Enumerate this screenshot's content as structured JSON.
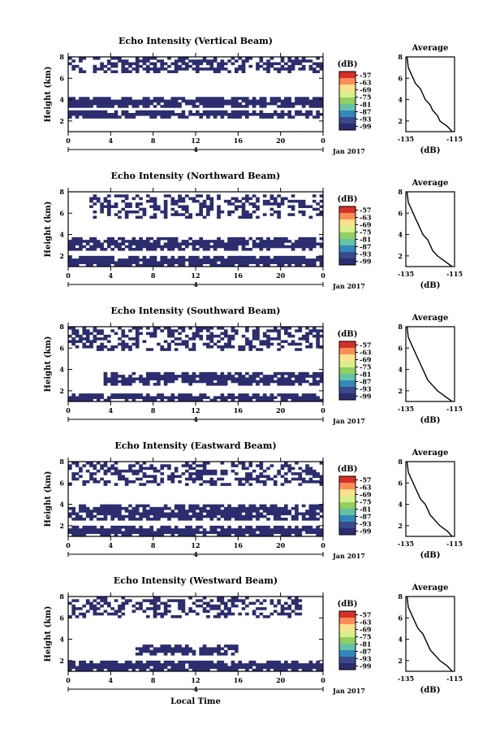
{
  "chart_data": {
    "type": "heatmap",
    "x_axis": {
      "label": "Local Time",
      "ticks": [
        "0",
        "4",
        "8",
        "12",
        "16",
        "20",
        "0"
      ],
      "range": [
        0,
        24
      ],
      "date_tick": "4",
      "date_label": "Jan 2017"
    },
    "y_axis": {
      "label": "Height (km)",
      "ticks": [
        "2",
        "4",
        "6",
        "8"
      ],
      "range": [
        1,
        8
      ]
    },
    "colorbar": {
      "label": "(dB)",
      "ticks": [
        "-57",
        "-63",
        "-69",
        "-75",
        "-81",
        "-87",
        "-93",
        "-99"
      ],
      "colors": [
        "#d73027",
        "#fc8d59",
        "#fee08b",
        "#d9ef8b",
        "#91cf60",
        "#66c2a5",
        "#3288bd",
        "#3a4a8c",
        "#2b2d6e"
      ]
    },
    "profile_axis": {
      "title": "Average",
      "x_ticks": [
        "-135",
        "-115"
      ],
      "x_range": [
        -135,
        -115
      ],
      "y_ticks": [
        "2",
        "4",
        "6",
        "8"
      ],
      "y_range": [
        1,
        8
      ],
      "xlabel": "(dB)"
    },
    "panels": [
      {
        "title": "Echo Intensity (Vertical Beam)",
        "bands": [
          {
            "t0": 0,
            "t1": 24,
            "h0": 2.3,
            "h1": 3.0,
            "density": 0.95
          },
          {
            "t0": 0,
            "t1": 24,
            "h0": 3.2,
            "h1": 4.3,
            "density": 0.92
          },
          {
            "t0": 0,
            "t1": 24,
            "h0": 6.6,
            "h1": 8.0,
            "density": 0.55
          }
        ],
        "profile": [
          [
            -116,
            1.0
          ],
          [
            -118,
            1.5
          ],
          [
            -121,
            2.0
          ],
          [
            -122,
            2.5
          ],
          [
            -124,
            3.0
          ],
          [
            -125,
            3.5
          ],
          [
            -127,
            4.0
          ],
          [
            -128,
            4.5
          ],
          [
            -129,
            5.0
          ],
          [
            -131,
            5.5
          ],
          [
            -132,
            6.0
          ],
          [
            -133,
            6.5
          ],
          [
            -134,
            7.0
          ],
          [
            -134.5,
            8.0
          ]
        ]
      },
      {
        "title": "Echo Intensity (Northward Beam)",
        "bands": [
          {
            "t0": 0,
            "t1": 24,
            "h0": 1.0,
            "h1": 1.9,
            "density": 0.95
          },
          {
            "t0": 0,
            "t1": 24,
            "h0": 2.6,
            "h1": 3.7,
            "density": 0.85
          },
          {
            "t0": 2,
            "t1": 24,
            "h0": 5.6,
            "h1": 7.8,
            "density": 0.45
          }
        ],
        "profile": [
          [
            -116,
            1.0
          ],
          [
            -119,
            1.5
          ],
          [
            -122,
            2.0
          ],
          [
            -124,
            2.5
          ],
          [
            -125,
            3.0
          ],
          [
            -126,
            3.5
          ],
          [
            -128,
            4.0
          ],
          [
            -129,
            4.5
          ],
          [
            -130,
            5.0
          ],
          [
            -131,
            5.5
          ],
          [
            -132,
            6.0
          ],
          [
            -133,
            6.5
          ],
          [
            -134,
            7.0
          ],
          [
            -134.5,
            8.0
          ]
        ]
      },
      {
        "title": "Echo Intensity (Southward Beam)",
        "bands": [
          {
            "t0": 0,
            "t1": 24,
            "h0": 1.0,
            "h1": 1.8,
            "density": 0.95
          },
          {
            "t0": 3.3,
            "t1": 24,
            "h0": 2.6,
            "h1": 3.7,
            "density": 0.85
          },
          {
            "t0": 0,
            "t1": 24,
            "h0": 5.8,
            "h1": 8.0,
            "density": 0.5
          }
        ],
        "profile": [
          [
            -116,
            1.0
          ],
          [
            -119,
            1.5
          ],
          [
            -122,
            2.0
          ],
          [
            -124,
            2.5
          ],
          [
            -126,
            3.0
          ],
          [
            -127,
            3.5
          ],
          [
            -128,
            4.0
          ],
          [
            -129,
            4.5
          ],
          [
            -130,
            5.0
          ],
          [
            -131,
            5.5
          ],
          [
            -132,
            6.0
          ],
          [
            -133,
            6.5
          ],
          [
            -134,
            7.0
          ],
          [
            -134.5,
            8.0
          ]
        ]
      },
      {
        "title": "Echo Intensity (Eastward Beam)",
        "bands": [
          {
            "t0": 0,
            "t1": 24,
            "h0": 1.0,
            "h1": 2.0,
            "density": 0.95
          },
          {
            "t0": 0,
            "t1": 24,
            "h0": 2.4,
            "h1": 4.0,
            "density": 0.85
          },
          {
            "t0": 0,
            "t1": 24,
            "h0": 5.8,
            "h1": 8.0,
            "density": 0.5
          }
        ],
        "profile": [
          [
            -116,
            1.0
          ],
          [
            -118,
            1.5
          ],
          [
            -121,
            2.0
          ],
          [
            -123,
            2.5
          ],
          [
            -125,
            3.0
          ],
          [
            -126,
            3.5
          ],
          [
            -127,
            4.0
          ],
          [
            -129,
            4.5
          ],
          [
            -130,
            5.0
          ],
          [
            -131,
            5.5
          ],
          [
            -132,
            6.0
          ],
          [
            -133,
            6.5
          ],
          [
            -134,
            7.0
          ],
          [
            -134.5,
            8.0
          ]
        ]
      },
      {
        "title": "Echo Intensity (Westward Beam)",
        "bands": [
          {
            "t0": 0,
            "t1": 24,
            "h0": 1.0,
            "h1": 2.0,
            "density": 0.95
          },
          {
            "t0": 6.5,
            "t1": 16,
            "h0": 2.5,
            "h1": 3.6,
            "density": 0.85
          },
          {
            "t0": 0,
            "t1": 22,
            "h0": 6.0,
            "h1": 8.0,
            "density": 0.45
          }
        ],
        "profile": [
          [
            -116,
            1.0
          ],
          [
            -118,
            1.5
          ],
          [
            -121,
            2.0
          ],
          [
            -123,
            2.5
          ],
          [
            -125,
            3.0
          ],
          [
            -126,
            3.5
          ],
          [
            -127,
            4.0
          ],
          [
            -128,
            4.5
          ],
          [
            -130,
            5.0
          ],
          [
            -131,
            5.5
          ],
          [
            -132,
            6.0
          ],
          [
            -133,
            6.5
          ],
          [
            -134,
            7.0
          ],
          [
            -134.5,
            8.0
          ]
        ]
      }
    ]
  }
}
